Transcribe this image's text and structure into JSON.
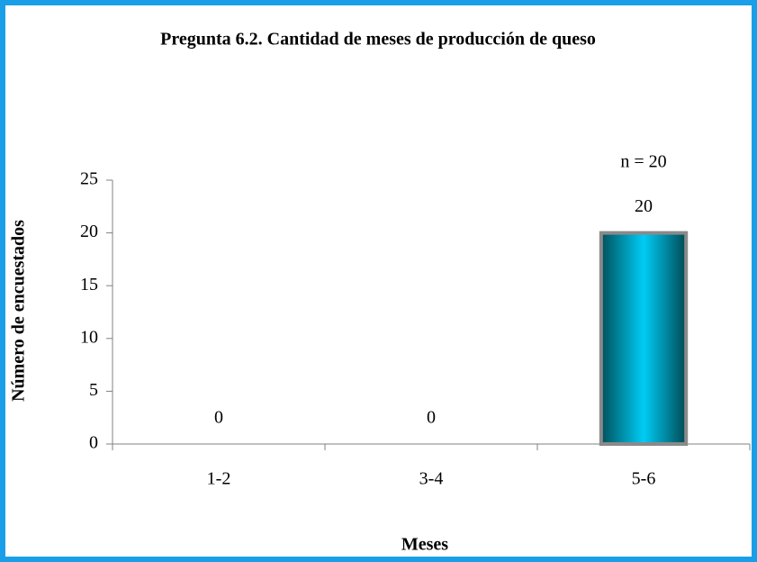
{
  "chart_data": {
    "type": "bar",
    "title": "Pregunta 6.2. Cantidad de meses de producción de queso",
    "annotation": "n = 20",
    "x_label": "Meses",
    "y_label": "Número de encuestados",
    "categories": [
      "1-2",
      "3-4",
      "5-6"
    ],
    "values": [
      0,
      0,
      20
    ],
    "color": "#00ccf5",
    "ylim": [
      0,
      25
    ],
    "yticks": [
      0,
      5,
      10,
      15,
      20,
      25
    ],
    "grid": false
  }
}
